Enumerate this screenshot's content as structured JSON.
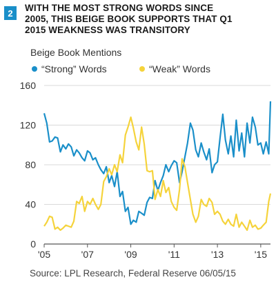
{
  "figure": {
    "number": "2",
    "title_lines": [
      "WITH THE MOST STRONG WORDS SINCE",
      "2005, THIS BEIGE BOOK SUPPORTS THAT Q1",
      "2015 WEAKNESS WAS TRANSITORY"
    ],
    "source": "Source: LPL Research, Federal Reserve   06/05/15"
  },
  "colors": {
    "strong": "#1a8fc9",
    "weak": "#f5d33b",
    "grid": "#d9d9d9",
    "axis": "#555555"
  },
  "chart_data": {
    "type": "line",
    "title": "WITH THE MOST STRONG WORDS SINCE 2005, THIS BEIGE BOOK SUPPORTS THAT Q1 2015 WEAKNESS WAS TRANSITORY",
    "ylabel": "Beige Book Mentions",
    "xlabel": "",
    "ylim": [
      0,
      160
    ],
    "yticks": [
      0,
      40,
      80,
      120,
      160
    ],
    "xlim": [
      2005,
      2015.45
    ],
    "xticks": [
      {
        "value": 2005,
        "label": "'05"
      },
      {
        "value": 2007,
        "label": "'07"
      },
      {
        "value": 2009,
        "label": "'09"
      },
      {
        "value": 2011,
        "label": "'11"
      },
      {
        "value": 2013,
        "label": "'13"
      },
      {
        "value": 2015,
        "label": "'15"
      }
    ],
    "grid": "horizontal",
    "legend_position": "top-left",
    "series": [
      {
        "name": "“Strong” Words",
        "points": [
          [
            2005.0,
            132
          ],
          [
            2005.12,
            122
          ],
          [
            2005.25,
            103
          ],
          [
            2005.37,
            104
          ],
          [
            2005.5,
            108
          ],
          [
            2005.62,
            107
          ],
          [
            2005.75,
            93
          ],
          [
            2005.87,
            100
          ],
          [
            2006.0,
            96
          ],
          [
            2006.12,
            101
          ],
          [
            2006.25,
            98
          ],
          [
            2006.37,
            89
          ],
          [
            2006.5,
            95
          ],
          [
            2006.62,
            92
          ],
          [
            2006.75,
            87
          ],
          [
            2006.87,
            84
          ],
          [
            2007.0,
            94
          ],
          [
            2007.12,
            92
          ],
          [
            2007.25,
            85
          ],
          [
            2007.37,
            87
          ],
          [
            2007.5,
            80
          ],
          [
            2007.62,
            75
          ],
          [
            2007.75,
            71
          ],
          [
            2007.87,
            78
          ],
          [
            2008.0,
            62
          ],
          [
            2008.12,
            69
          ],
          [
            2008.25,
            58
          ],
          [
            2008.37,
            73
          ],
          [
            2008.5,
            48
          ],
          [
            2008.62,
            53
          ],
          [
            2008.75,
            33
          ],
          [
            2008.87,
            37
          ],
          [
            2009.0,
            20
          ],
          [
            2009.12,
            24
          ],
          [
            2009.25,
            22
          ],
          [
            2009.37,
            33
          ],
          [
            2009.5,
            31
          ],
          [
            2009.62,
            29
          ],
          [
            2009.75,
            42
          ],
          [
            2009.87,
            47
          ],
          [
            2010.0,
            46
          ],
          [
            2010.12,
            64
          ],
          [
            2010.25,
            54
          ],
          [
            2010.37,
            62
          ],
          [
            2010.5,
            69
          ],
          [
            2010.62,
            80
          ],
          [
            2010.75,
            73
          ],
          [
            2010.87,
            79
          ],
          [
            2011.0,
            84
          ],
          [
            2011.12,
            82
          ],
          [
            2011.25,
            62
          ],
          [
            2011.37,
            73
          ],
          [
            2011.5,
            88
          ],
          [
            2011.62,
            102
          ],
          [
            2011.75,
            122
          ],
          [
            2011.87,
            115
          ],
          [
            2012.0,
            95
          ],
          [
            2012.12,
            88
          ],
          [
            2012.25,
            102
          ],
          [
            2012.37,
            93
          ],
          [
            2012.5,
            85
          ],
          [
            2012.62,
            96
          ],
          [
            2012.75,
            72
          ],
          [
            2012.87,
            80
          ],
          [
            2013.0,
            83
          ],
          [
            2013.12,
            107
          ],
          [
            2013.25,
            131
          ],
          [
            2013.37,
            105
          ],
          [
            2013.5,
            91
          ],
          [
            2013.62,
            109
          ],
          [
            2013.75,
            88
          ],
          [
            2013.87,
            125
          ],
          [
            2014.0,
            94
          ],
          [
            2014.12,
            112
          ],
          [
            2014.25,
            88
          ],
          [
            2014.37,
            122
          ],
          [
            2014.5,
            102
          ],
          [
            2014.62,
            128
          ],
          [
            2014.75,
            118
          ],
          [
            2014.87,
            100
          ],
          [
            2015.0,
            102
          ],
          [
            2015.12,
            91
          ],
          [
            2015.25,
            103
          ],
          [
            2015.37,
            91
          ],
          [
            2015.45,
            144
          ]
        ]
      },
      {
        "name": "“Weak” Words",
        "points": [
          [
            2005.0,
            18
          ],
          [
            2005.12,
            22
          ],
          [
            2005.25,
            28
          ],
          [
            2005.37,
            27
          ],
          [
            2005.5,
            15
          ],
          [
            2005.62,
            17
          ],
          [
            2005.75,
            14
          ],
          [
            2005.87,
            16
          ],
          [
            2006.0,
            19
          ],
          [
            2006.12,
            18
          ],
          [
            2006.25,
            17
          ],
          [
            2006.37,
            23
          ],
          [
            2006.5,
            43
          ],
          [
            2006.62,
            41
          ],
          [
            2006.75,
            48
          ],
          [
            2006.87,
            33
          ],
          [
            2007.0,
            43
          ],
          [
            2007.12,
            40
          ],
          [
            2007.25,
            46
          ],
          [
            2007.37,
            40
          ],
          [
            2007.5,
            35
          ],
          [
            2007.62,
            40
          ],
          [
            2007.75,
            63
          ],
          [
            2007.87,
            68
          ],
          [
            2008.0,
            76
          ],
          [
            2008.12,
            70
          ],
          [
            2008.25,
            80
          ],
          [
            2008.37,
            73
          ],
          [
            2008.5,
            90
          ],
          [
            2008.62,
            82
          ],
          [
            2008.75,
            110
          ],
          [
            2008.87,
            118
          ],
          [
            2009.0,
            128
          ],
          [
            2009.12,
            117
          ],
          [
            2009.25,
            103
          ],
          [
            2009.37,
            95
          ],
          [
            2009.5,
            118
          ],
          [
            2009.62,
            101
          ],
          [
            2009.75,
            74
          ],
          [
            2009.87,
            73
          ],
          [
            2010.0,
            74
          ],
          [
            2010.12,
            45
          ],
          [
            2010.25,
            55
          ],
          [
            2010.37,
            48
          ],
          [
            2010.5,
            64
          ],
          [
            2010.62,
            52
          ],
          [
            2010.75,
            57
          ],
          [
            2010.87,
            43
          ],
          [
            2011.0,
            37
          ],
          [
            2011.12,
            34
          ],
          [
            2011.25,
            55
          ],
          [
            2011.37,
            86
          ],
          [
            2011.5,
            78
          ],
          [
            2011.62,
            62
          ],
          [
            2011.75,
            45
          ],
          [
            2011.87,
            30
          ],
          [
            2012.0,
            22
          ],
          [
            2012.12,
            28
          ],
          [
            2012.25,
            45
          ],
          [
            2012.37,
            40
          ],
          [
            2012.5,
            38
          ],
          [
            2012.62,
            46
          ],
          [
            2012.75,
            42
          ],
          [
            2012.87,
            30
          ],
          [
            2013.0,
            33
          ],
          [
            2013.12,
            30
          ],
          [
            2013.25,
            23
          ],
          [
            2013.37,
            20
          ],
          [
            2013.5,
            25
          ],
          [
            2013.62,
            20
          ],
          [
            2013.75,
            18
          ],
          [
            2013.87,
            30
          ],
          [
            2014.0,
            17
          ],
          [
            2014.12,
            22
          ],
          [
            2014.25,
            18
          ],
          [
            2014.37,
            14
          ],
          [
            2014.5,
            24
          ],
          [
            2014.62,
            17
          ],
          [
            2014.75,
            19
          ],
          [
            2014.87,
            15
          ],
          [
            2015.0,
            16
          ],
          [
            2015.12,
            19
          ],
          [
            2015.25,
            22
          ],
          [
            2015.37,
            43
          ],
          [
            2015.45,
            51
          ]
        ]
      }
    ]
  }
}
